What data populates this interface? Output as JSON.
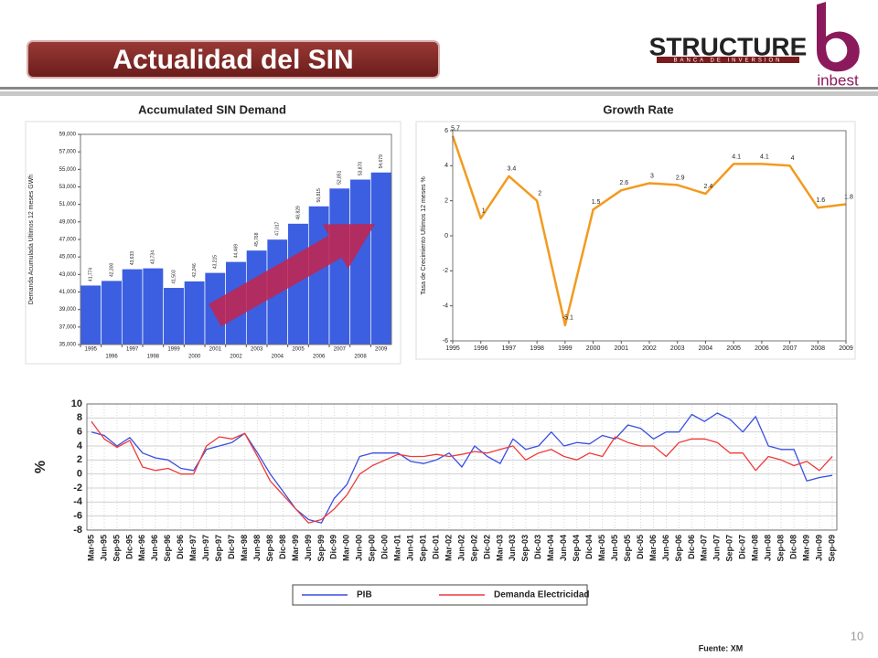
{
  "title": "Actualidad del SIN",
  "logo": {
    "brand": "STRUCTURE",
    "tagline": "BANCA DE INVERSION",
    "partner": "inbest"
  },
  "page_number": "10",
  "source": "Fuente: XM",
  "chart_data": [
    {
      "type": "bar",
      "title": "Accumulated SIN Demand",
      "ylabel": "Demanda Acumulada Ultimos 12 meses GWh",
      "categories": [
        "1995",
        "1996",
        "1997",
        "1998",
        "1999",
        "2000",
        "2001",
        "2002",
        "2003",
        "2004",
        "2005",
        "2006",
        "2007",
        "2008",
        "2009"
      ],
      "values": [
        41774,
        42300,
        43633,
        43734,
        41503,
        42246,
        43215,
        44469,
        45768,
        47017,
        48829,
        50815,
        52851,
        53870,
        54679
      ],
      "value_labels": [
        "41,774",
        "42,300",
        "43,633",
        "43,734",
        "41,503",
        "42,246",
        "43,215",
        "44,469",
        "45,768",
        "47,017",
        "48,829",
        "50,815",
        "52,851",
        "53,870",
        "54,679"
      ],
      "color": "#3b5fe0",
      "ylim": [
        35000,
        59000
      ],
      "yticks": [
        {
          "value": 35000,
          "label": "35,000"
        },
        {
          "value": 37000,
          "label": "37,000"
        },
        {
          "value": 39000,
          "label": "39,000"
        },
        {
          "value": 41000,
          "label": "41,000"
        },
        {
          "value": 43000,
          "label": "43,000"
        },
        {
          "value": 45000,
          "label": "45,000"
        },
        {
          "value": 47000,
          "label": "47,000"
        },
        {
          "value": 49000,
          "label": "49,000"
        },
        {
          "value": 51000,
          "label": "51,000"
        },
        {
          "value": 53000,
          "label": "53,000"
        },
        {
          "value": 55000,
          "label": "55,000"
        },
        {
          "value": 57000,
          "label": "57,000"
        },
        {
          "value": 59000,
          "label": "59,000"
        }
      ]
    },
    {
      "type": "line",
      "title": "Growth Rate",
      "ylabel": "Tasa de Crecimiento Ultimos 12 meses %",
      "x": [
        1995,
        1996,
        1997,
        1998,
        1999,
        2000,
        2001,
        2002,
        2003,
        2004,
        2005,
        2006,
        2007,
        2008,
        2009
      ],
      "values": [
        5.7,
        1,
        3.4,
        2,
        -5.1,
        1.5,
        2.6,
        3,
        2.9,
        2.4,
        4.1,
        4.1,
        4,
        1.6,
        1.8
      ],
      "color": "#f39a1e",
      "xlim": [
        1995,
        2009
      ],
      "xticks": [
        1995,
        1996,
        1997,
        1998,
        1999,
        2000,
        2001,
        2002,
        2003,
        2004,
        2005,
        2006,
        2007,
        2008,
        2009
      ],
      "ylim": [
        -6,
        6
      ],
      "yticks": [
        -6,
        -4,
        -2,
        0,
        2,
        4,
        6
      ]
    },
    {
      "type": "line",
      "ylabel": "%",
      "categories": [
        "Mar-95",
        "Jun-95",
        "Sep-95",
        "Dic-95",
        "Mar-96",
        "Jun-96",
        "Sep-96",
        "Dic-96",
        "Mar-97",
        "Jun-97",
        "Sep-97",
        "Dic-97",
        "Mar-98",
        "Jun-98",
        "Sep-98",
        "Dic-98",
        "Mar-99",
        "Jun-99",
        "Sep-99",
        "Dic-99",
        "Mar-00",
        "Jun-00",
        "Sep-00",
        "Dic-00",
        "Mar-01",
        "Jun-01",
        "Sep-01",
        "Dic-01",
        "Mar-02",
        "Jun-02",
        "Sep-02",
        "Dic-02",
        "Mar-03",
        "Jun-03",
        "Sep-03",
        "Dic-03",
        "Mar-04",
        "Jun-04",
        "Sep-04",
        "Dic-04",
        "Mar-05",
        "Jun-05",
        "Sep-05",
        "Dic-05",
        "Mar-06",
        "Jun-06",
        "Sep-06",
        "Dic-06",
        "Mar-07",
        "Jun-07",
        "Sep-07",
        "Dic-07",
        "Mar-08",
        "Jun-08",
        "Sep-08",
        "Dic-08",
        "Mar-09",
        "Jun-09",
        "Sep-09"
      ],
      "series": [
        {
          "name": "PIB",
          "color": "#3a4fe0",
          "values": [
            6,
            5.5,
            4,
            5.2,
            3,
            2.3,
            2,
            0.8,
            0.5,
            3.5,
            4,
            4.5,
            5.8,
            3,
            0,
            -2.5,
            -5,
            -6.5,
            -7,
            -3.5,
            -1.5,
            2.5,
            3,
            3,
            3,
            1.8,
            1.5,
            2,
            3,
            1,
            4,
            2.5,
            1.5,
            5,
            3.5,
            4,
            6,
            4,
            4.5,
            4.3,
            5.5,
            5,
            7,
            6.5,
            5,
            6,
            6,
            8.5,
            7.5,
            8.7,
            7.8,
            6,
            8.2,
            4,
            3.5,
            3.5,
            -1,
            -0.5,
            -0.2
          ]
        },
        {
          "name": "Demanda Electricidad",
          "color": "#ee3a3a",
          "values": [
            7.5,
            5,
            3.8,
            4.8,
            1,
            0.5,
            0.8,
            0,
            0,
            4,
            5.3,
            5,
            5.8,
            2.5,
            -1,
            -3,
            -5,
            -7,
            -6.5,
            -5,
            -3,
            0,
            1.2,
            2,
            2.8,
            2.5,
            2.5,
            2.8,
            2.5,
            2.8,
            3.2,
            3,
            3.5,
            4,
            2,
            3,
            3.5,
            2.5,
            2,
            3,
            2.5,
            5.3,
            4.5,
            4,
            4,
            2.5,
            4.5,
            5,
            5,
            4.5,
            3,
            3,
            0.5,
            2.5,
            2,
            1.2,
            1.8,
            0.5,
            2.5
          ]
        }
      ],
      "ylim": [
        -8,
        10
      ],
      "yticks": [
        -8,
        -6,
        -4,
        -2,
        0,
        2,
        4,
        6,
        8,
        10
      ],
      "grid": true,
      "legend": "bottom"
    }
  ]
}
